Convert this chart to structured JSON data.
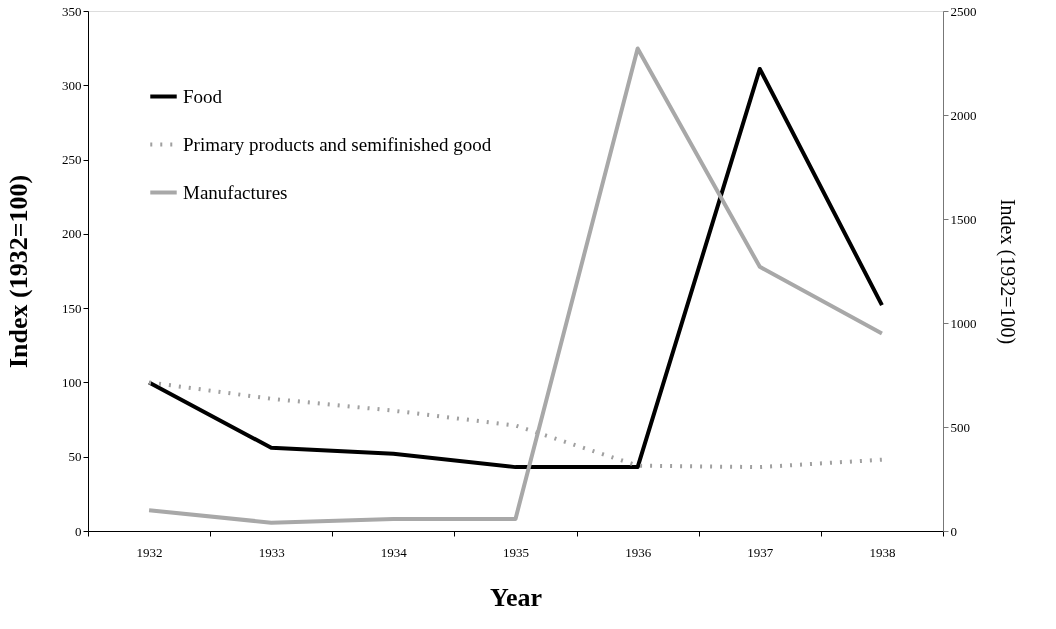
{
  "chart_data": {
    "type": "line",
    "xlabel": "Year",
    "ylabel": "Index (1932=100)",
    "y2label": "Index (1932=100)",
    "categories": [
      "1932",
      "1933",
      "1934",
      "1935",
      "1936",
      "1937",
      "1938"
    ],
    "series": [
      {
        "name": "Food",
        "color": "#000000",
        "line_style": "solid",
        "values": [
          100,
          56,
          52,
          43,
          43,
          311,
          152
        ]
      },
      {
        "name": "Primary products and semifinished good",
        "color": "#a0a0a0",
        "line_style": "dotted",
        "values": [
          100,
          89,
          81,
          71,
          44,
          43,
          48
        ]
      },
      {
        "name": "Manufactures",
        "color": "#a8a8a8",
        "line_style": "solid",
        "axis": "y2",
        "values": [
          100,
          40,
          58,
          58,
          2320,
          1270,
          950
        ]
      }
    ],
    "ylim": [
      0,
      350
    ],
    "yticks": [
      0,
      50,
      100,
      150,
      200,
      250,
      300,
      350
    ],
    "y2lim": [
      0,
      2500
    ],
    "y2ticks": [
      0,
      500,
      1000,
      1500,
      2000,
      2500
    ],
    "grid": false,
    "legend": "top left",
    "marker": "none"
  }
}
